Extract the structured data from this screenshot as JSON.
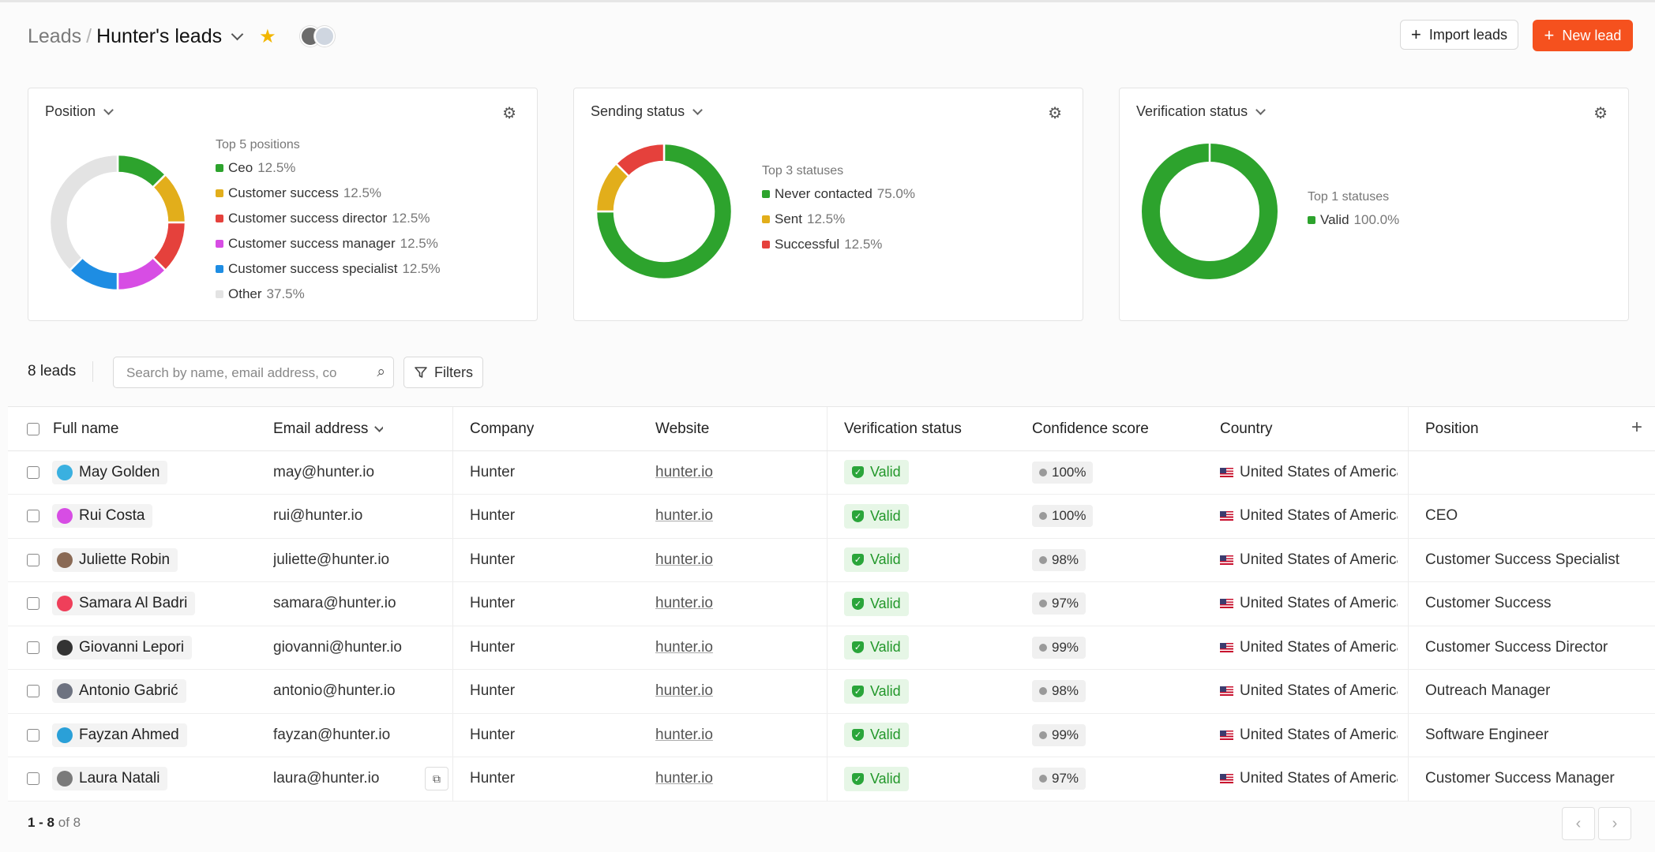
{
  "breadcrumb": {
    "root": "Leads",
    "separator": "/",
    "current": "Hunter's leads"
  },
  "header": {
    "import_label": "Import leads",
    "new_label": "New lead"
  },
  "cards": [
    {
      "title": "Position",
      "legend_heading": "Top 5 positions",
      "items": [
        {
          "label": "Ceo",
          "pct": "12.5%",
          "color": "#2da32d",
          "value": 12.5
        },
        {
          "label": "Customer success",
          "pct": "12.5%",
          "color": "#e2ae1b",
          "value": 12.5
        },
        {
          "label": "Customer success director",
          "pct": "12.5%",
          "color": "#e5413c",
          "value": 12.5
        },
        {
          "label": "Customer success manager",
          "pct": "12.5%",
          "color": "#d74de4",
          "value": 12.5
        },
        {
          "label": "Customer success specialist",
          "pct": "12.5%",
          "color": "#1e8de3",
          "value": 12.5
        },
        {
          "label": "Other",
          "pct": "37.5%",
          "color": "#e3e3e3",
          "value": 37.5
        }
      ]
    },
    {
      "title": "Sending status",
      "legend_heading": "Top 3 statuses",
      "items": [
        {
          "label": "Never contacted",
          "pct": "75.0%",
          "color": "#2da32d",
          "value": 75
        },
        {
          "label": "Sent",
          "pct": "12.5%",
          "color": "#e2ae1b",
          "value": 12.5
        },
        {
          "label": "Successful",
          "pct": "12.5%",
          "color": "#e5413c",
          "value": 12.5
        }
      ]
    },
    {
      "title": "Verification status",
      "legend_heading": "Top 1 statuses",
      "items": [
        {
          "label": "Valid",
          "pct": "100.0%",
          "color": "#2da32d",
          "value": 100
        }
      ]
    }
  ],
  "toolbar": {
    "count": "8 leads",
    "search_placeholder": "Search by name, email address, co",
    "filters_label": "Filters"
  },
  "table": {
    "columns": [
      "Full name",
      "Email address",
      "Company",
      "Website",
      "Verification status",
      "Confidence score",
      "Country",
      "Position"
    ],
    "rows": [
      {
        "name": "May Golden",
        "avatar": "#3ab0e0",
        "email": "may@hunter.io",
        "company": "Hunter",
        "website": "hunter.io",
        "status": "Valid",
        "score": "100%",
        "country": "United States of America",
        "position": ""
      },
      {
        "name": "Rui Costa",
        "avatar": "#d74de4",
        "email": "rui@hunter.io",
        "company": "Hunter",
        "website": "hunter.io",
        "status": "Valid",
        "score": "100%",
        "country": "United States of America",
        "position": "CEO"
      },
      {
        "name": "Juliette Robin",
        "avatar": "#8a6a55",
        "email": "juliette@hunter.io",
        "company": "Hunter",
        "website": "hunter.io",
        "status": "Valid",
        "score": "98%",
        "country": "United States of America",
        "position": "Customer Success Specialist"
      },
      {
        "name": "Samara Al Badri",
        "avatar": "#ef3f5a",
        "email": "samara@hunter.io",
        "company": "Hunter",
        "website": "hunter.io",
        "status": "Valid",
        "score": "97%",
        "country": "United States of America",
        "position": "Customer Success"
      },
      {
        "name": "Giovanni Lepori",
        "avatar": "#333333",
        "email": "giovanni@hunter.io",
        "company": "Hunter",
        "website": "hunter.io",
        "status": "Valid",
        "score": "99%",
        "country": "United States of America",
        "position": "Customer Success Director"
      },
      {
        "name": "Antonio Gabrić",
        "avatar": "#6d7280",
        "email": "antonio@hunter.io",
        "company": "Hunter",
        "website": "hunter.io",
        "status": "Valid",
        "score": "98%",
        "country": "United States of America",
        "position": "Outreach Manager"
      },
      {
        "name": "Fayzan Ahmed",
        "avatar": "#2aa0d8",
        "email": "fayzan@hunter.io",
        "company": "Hunter",
        "website": "hunter.io",
        "status": "Valid",
        "score": "99%",
        "country": "United States of America",
        "position": "Software Engineer"
      },
      {
        "name": "Laura Natali",
        "avatar": "#7a7a7a",
        "email": "laura@hunter.io",
        "company": "Hunter",
        "website": "hunter.io",
        "status": "Valid",
        "score": "97%",
        "country": "United States of America",
        "position": "Customer Success Manager"
      }
    ]
  },
  "footer": {
    "range": "1 - 8",
    "of": "of 8"
  }
}
